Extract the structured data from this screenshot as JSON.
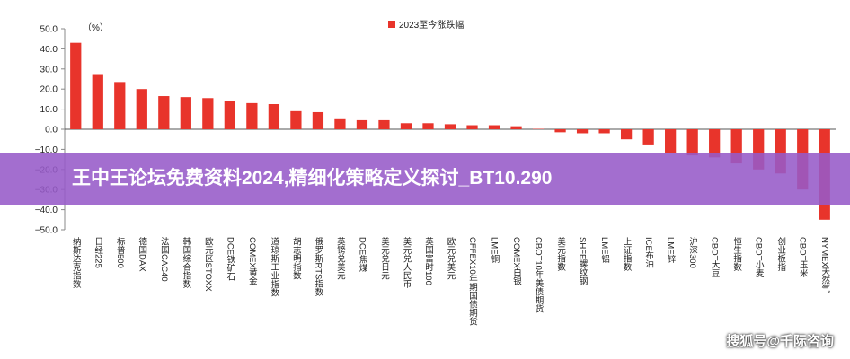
{
  "chart_data": {
    "type": "bar",
    "legend": "2023至今涨跌幅",
    "unit_label": "（%）",
    "color": "#e8342b",
    "categories": [
      "纳斯达克指数",
      "日经225",
      "标普500",
      "德国DAX",
      "法国CAC40",
      "韩国综合指数",
      "欧元区STOXX",
      "DCE铁矿石",
      "COMEX黄金",
      "道琼斯工业指数",
      "胡志明指数",
      "俄罗斯RTS指数",
      "英镑兑美元",
      "DCE焦煤",
      "美元兑日元",
      "美元兑人民币",
      "英国富时100",
      "欧元兑美元",
      "CFFEX10年期国债期货",
      "LME铜",
      "COMEX白银",
      "CBOT10年美债期货",
      "美元指数",
      "SHFE螺纹钢",
      "LME铝",
      "上证指数",
      "ICE布油",
      "LME锌",
      "沪深300",
      "CBOT大豆",
      "恒生指数",
      "CBOT小麦",
      "创业板指",
      "CBOT玉米",
      "NYMEX天然气"
    ],
    "values": [
      43,
      27,
      23.5,
      20,
      16.5,
      16,
      15.5,
      14,
      13,
      12.5,
      9,
      8.5,
      5,
      4.5,
      4.5,
      3,
      3,
      2.5,
      2,
      2,
      1.5,
      0.2,
      -1.5,
      -2,
      -2,
      -5,
      -8,
      -12,
      -13,
      -14,
      -17,
      -20,
      -22,
      -30,
      -45
    ],
    "ylim": [
      -50,
      50
    ],
    "yticks": [
      {
        "value": 50,
        "label": "50.0"
      },
      {
        "value": 40,
        "label": "40.0"
      },
      {
        "value": 30,
        "label": "30.0"
      },
      {
        "value": 20,
        "label": "20.0"
      },
      {
        "value": 10,
        "label": "10.0"
      },
      {
        "value": 0,
        "label": "0.0"
      },
      {
        "value": -10,
        "label": "−10.0"
      },
      {
        "value": -20,
        "label": "−20.0"
      },
      {
        "value": -30,
        "label": "−30.0"
      },
      {
        "value": -40,
        "label": "−40.0"
      },
      {
        "value": -50,
        "label": "−50.0"
      }
    ],
    "grid": false
  },
  "banner": "王中王论坛免费资料2024,精细化策略定义探讨_BT10.290",
  "watermark": "搜狐号@千际咨询"
}
